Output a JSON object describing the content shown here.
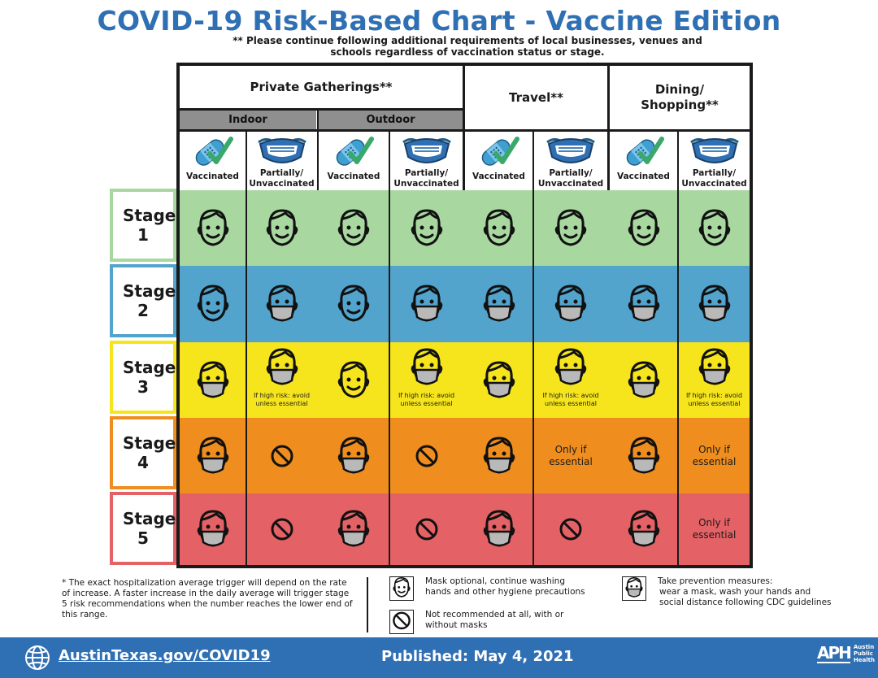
{
  "title": "COVID-19 Risk-Based Chart - Vaccine Edition",
  "subtitle": "** Please continue following additional requirements of local businesses, venues and schools regardless of vaccination status or stage.",
  "headers": {
    "private_gatherings": "Private Gatherings**",
    "indoor": "Indoor",
    "outdoor": "Outdoor",
    "travel": "Travel**",
    "dining": "Dining/ Shopping**"
  },
  "column_labels": {
    "vaccinated": "Vaccinated",
    "unvaccinated": "Partially/ Unvaccinated"
  },
  "stages": [
    {
      "label": "Stage 1",
      "color": "#a8d8a0",
      "border": "#a8d8a0"
    },
    {
      "label": "Stage 2",
      "color": "#52a4cd",
      "border": "#52a4cd"
    },
    {
      "label": "Stage 3",
      "color": "#f6e51d",
      "border": "#f6e51d"
    },
    {
      "label": "Stage 4",
      "color": "#ef8e1f",
      "border": "#ef8e1f"
    },
    {
      "label": "Stage 5",
      "color": "#e46265",
      "border": "#e46265"
    }
  ],
  "cells": [
    [
      "face",
      "face",
      "face",
      "face",
      "face",
      "face",
      "face",
      "face"
    ],
    [
      "face",
      "mask",
      "face",
      "mask",
      "mask",
      "mask",
      "mask",
      "mask"
    ],
    [
      "mask",
      "mask-note",
      "face",
      "mask-note",
      "mask",
      "mask-note",
      "mask",
      "mask-note"
    ],
    [
      "mask",
      "no",
      "mask",
      "no",
      "mask",
      "essential",
      "mask",
      "essential"
    ],
    [
      "mask",
      "no",
      "mask",
      "no",
      "mask",
      "no",
      "mask",
      "essential"
    ]
  ],
  "cell_texts": {
    "high_risk": "If high risk: avoid unless essential",
    "essential": "Only if essential"
  },
  "footer": {
    "note": "* The exact hospitalization average trigger will depend on the rate of increase. A faster increase in the daily average will trigger stage 5 risk recommendations when the number reaches the lower end of this range.",
    "legend_face": "Mask optional, continue washing hands and other hygiene precautions",
    "legend_no": "Not recommended at all, with or without masks",
    "legend_mask_title": "Take prevention measures:",
    "legend_mask": "wear a mask, wash your hands and social distance following CDC guidelines",
    "url": "AustinTexas.gov/COVID19",
    "published": "Published: May 4, 2021",
    "logo_mark": "APH",
    "logo_words": "Austin Public Health"
  },
  "colors": {
    "title_blue": "#2f6fb3",
    "header_gray": "#8f8f8f"
  },
  "icons": [
    "bandaid-check-icon",
    "face-mask-icon",
    "smiling-face-icon",
    "masked-face-icon",
    "no-symbol-icon",
    "globe-icon"
  ]
}
